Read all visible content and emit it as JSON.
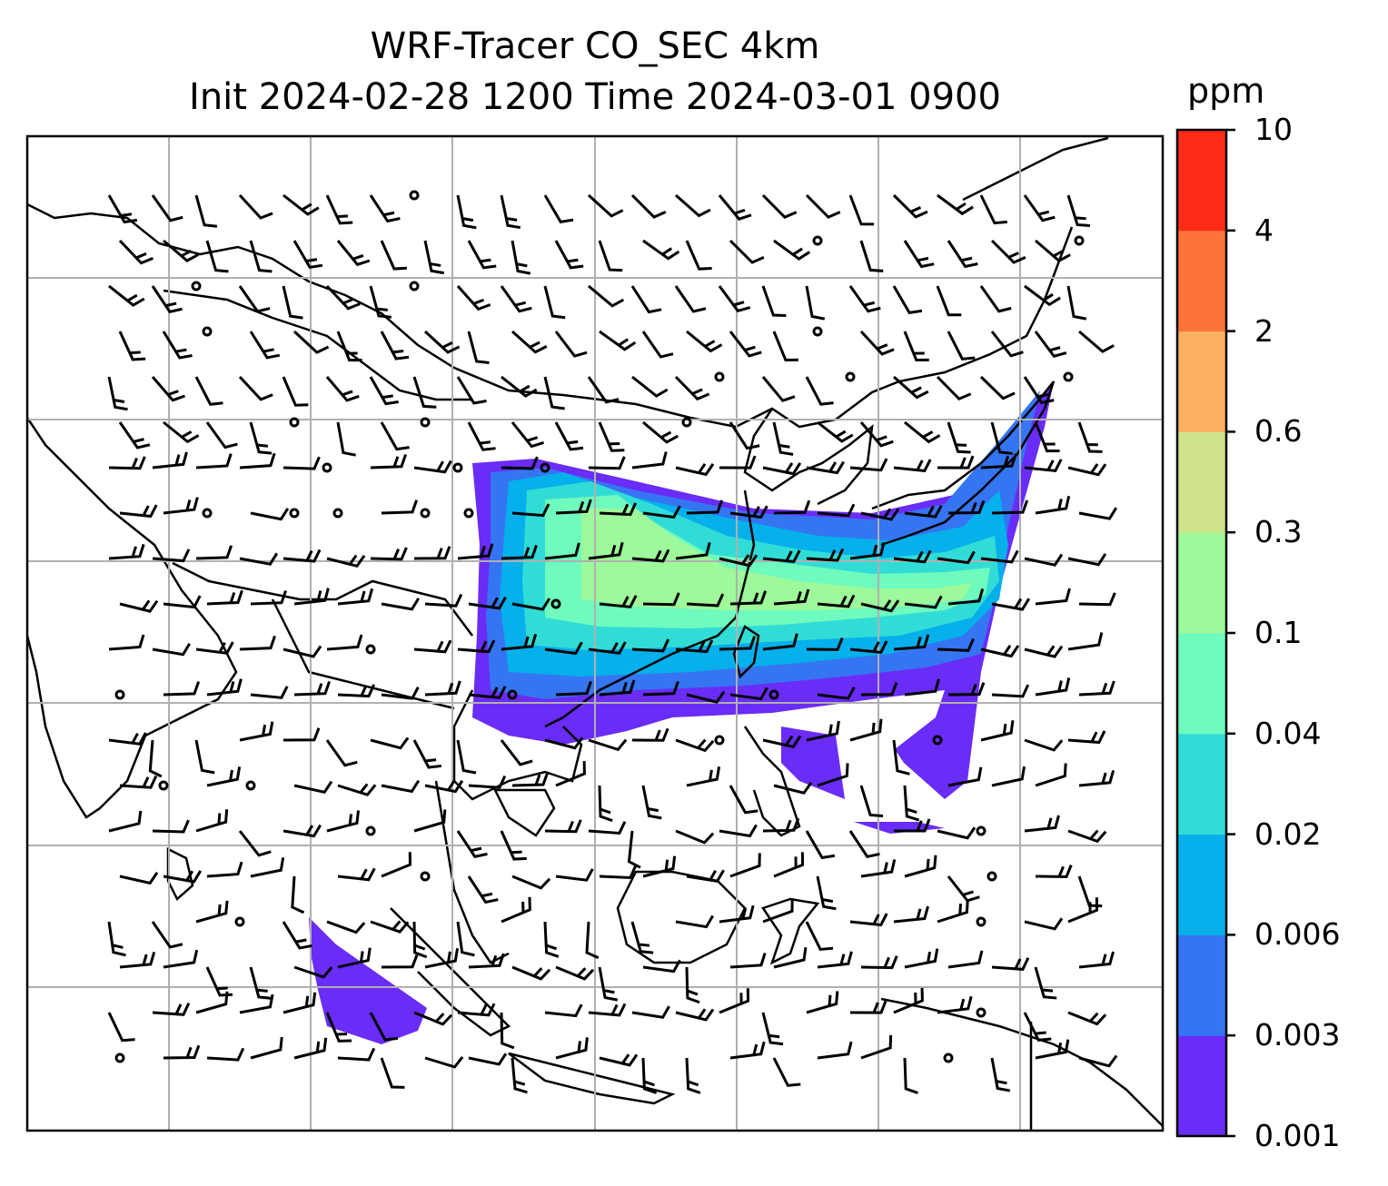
{
  "title": {
    "line1": "WRF-Tracer CO_SEC 4km",
    "line2": "Init 2024-02-28 1200 Time 2024-03-01 0900"
  },
  "colorbar": {
    "unit": "ppm",
    "levels": [
      "0.001",
      "0.003",
      "0.006",
      "0.02",
      "0.04",
      "0.1",
      "0.3",
      "0.6",
      "2",
      "4",
      "10"
    ],
    "colors": [
      "#6a2cf7",
      "#3575f2",
      "#05b0eb",
      "#32dcd6",
      "#6ffabe",
      "#9df99a",
      "#cfe38b",
      "#fcb063",
      "#fd733c",
      "#fe2c17"
    ]
  },
  "map": {
    "gridlines": true,
    "gridline_color": "#b0b0b0",
    "coastline_color": "#000000",
    "wind_barbs": true
  }
}
